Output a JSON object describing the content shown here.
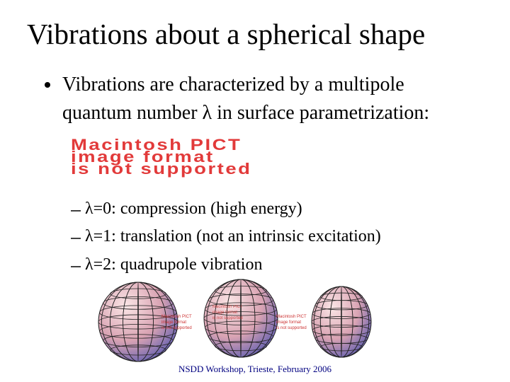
{
  "title": "Vibrations about a spherical shape",
  "bullet": {
    "lines": [
      "Vibrations are characterized by a multipole",
      "quantum number λ in surface parametrization:"
    ]
  },
  "image_placeholder": {
    "lines": [
      "Macintosh PICT",
      "image format",
      "is not supported"
    ]
  },
  "sub_bullets": [
    "λ=0: compression (high energy)",
    "λ=1: translation (not an intrinsic excitation)",
    "λ=2: quadrupole vibration"
  ],
  "sphere_figures": [
    {
      "lines": [
        "Macintosh PICT",
        "image format",
        "is not supported"
      ]
    },
    {
      "lines": [
        "Macintosh PICT",
        "image format",
        "is not supported"
      ]
    },
    {
      "lines": [
        "Macintosh PICT",
        "image format",
        "is not supported"
      ]
    }
  ],
  "footer": "NSDD Workshop, Trieste, February 2006"
}
